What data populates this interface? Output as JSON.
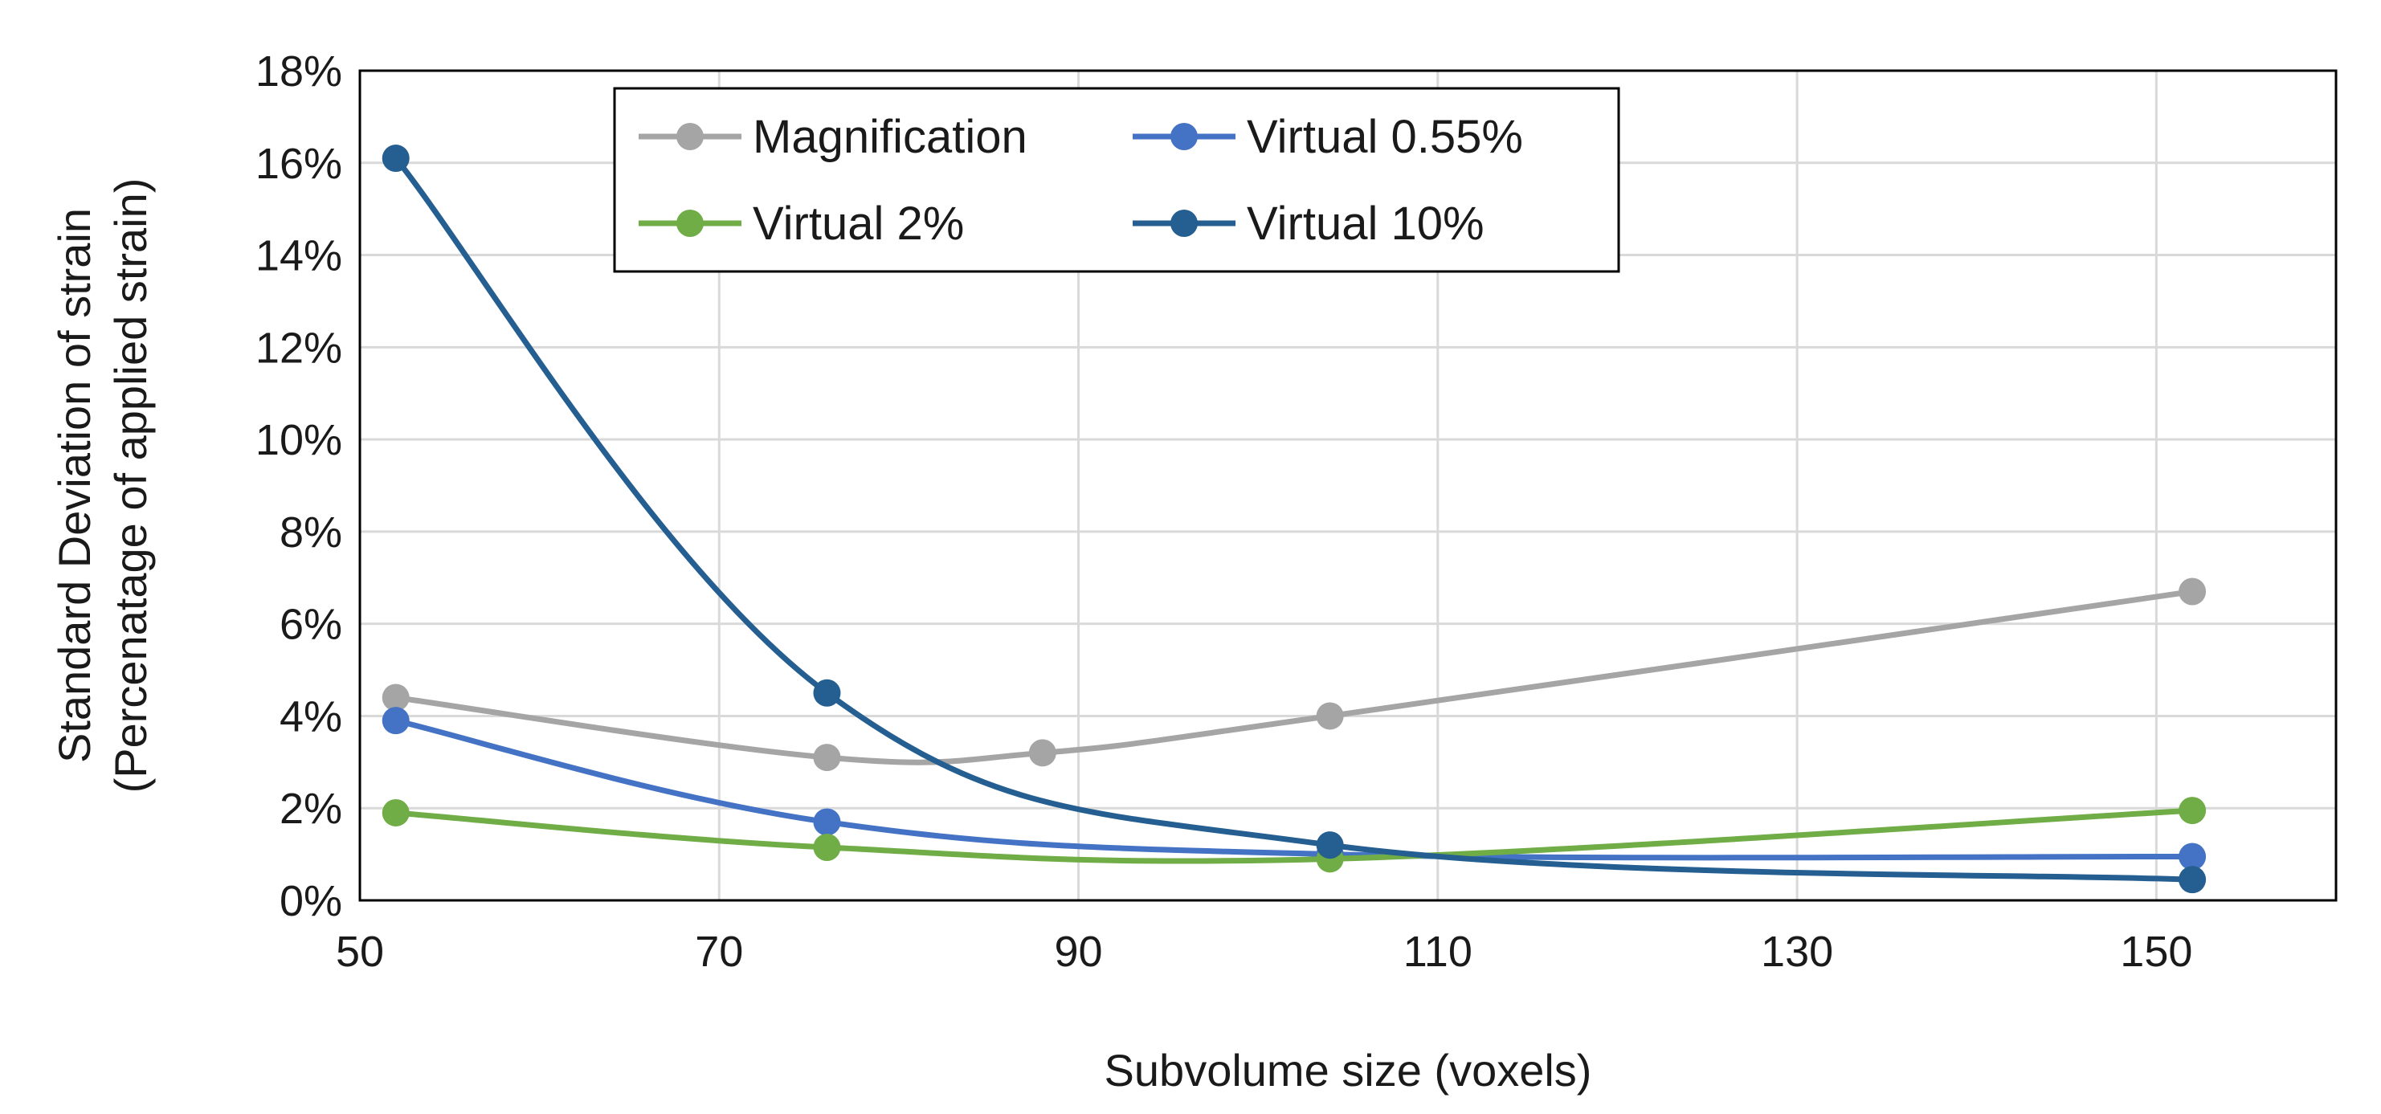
{
  "chart_data": {
    "type": "line",
    "title": "",
    "xlabel": "Subvolume size (voxels)",
    "ylabel_line1": "Standard Deviation of strain",
    "ylabel_line2": "(Percenatage of applied strain)",
    "xlim": [
      50,
      160
    ],
    "ylim": [
      0,
      18
    ],
    "x_ticks": [
      50,
      70,
      90,
      110,
      130,
      150
    ],
    "x_tick_labels": [
      "50",
      "70",
      "90",
      "110",
      "130",
      "150"
    ],
    "y_ticks": [
      0,
      2,
      4,
      6,
      8,
      10,
      12,
      14,
      16,
      18
    ],
    "y_tick_labels": [
      "0%",
      "2%",
      "4%",
      "6%",
      "8%",
      "10%",
      "12%",
      "14%",
      "16%",
      "18%"
    ],
    "grid": true,
    "smooth": true,
    "legend_position": "top-left",
    "series": [
      {
        "name": "Magnification",
        "color": "#a5a5a5",
        "points": [
          [
            52,
            4.4
          ],
          [
            76,
            3.1
          ],
          [
            88,
            3.2
          ],
          [
            104,
            4.0
          ],
          [
            152,
            6.7
          ]
        ]
      },
      {
        "name": "Virtual 0.55%",
        "color": "#4472c4",
        "points": [
          [
            52,
            3.9
          ],
          [
            76,
            1.7
          ],
          [
            104,
            1.0
          ],
          [
            152,
            0.95
          ]
        ]
      },
      {
        "name": "Virtual 2%",
        "color": "#70ad47",
        "points": [
          [
            52,
            1.9
          ],
          [
            76,
            1.15
          ],
          [
            104,
            0.9
          ],
          [
            152,
            1.95
          ]
        ]
      },
      {
        "name": "Virtual 10%",
        "color": "#255e91",
        "points": [
          [
            52,
            16.1
          ],
          [
            76,
            4.5
          ],
          [
            104,
            1.2
          ],
          [
            152,
            0.45
          ]
        ]
      }
    ]
  }
}
